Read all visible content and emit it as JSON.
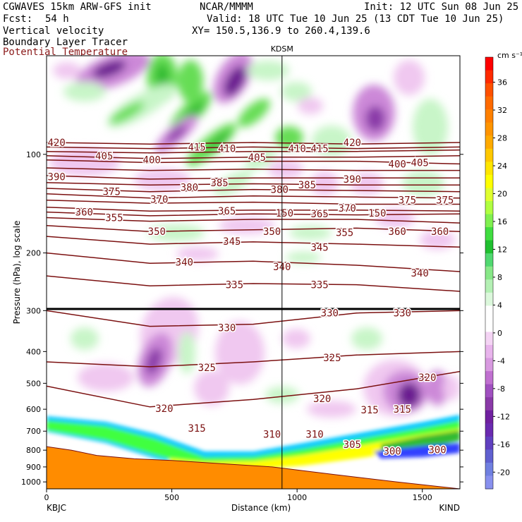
{
  "header": {
    "model": "CGWAVES 15km ARW-GFS init",
    "org": "NCAR/MMMM",
    "init": "Init: 12 UTC Sun 08 Jun 25",
    "fcst_label": "Fcst:",
    "fcst_value": "54 h",
    "valid": "Valid: 18 UTC Tue 10 Jun 25 (13 CDT Tue 10 Jun 25)",
    "field1": "Vertical velocity",
    "xy": "XY= 150.5,136.9 to 260.4,139.6",
    "field2": "Boundary Layer Tracer",
    "field3": "Potential Temperature"
  },
  "colors": {
    "theta": "#7b1010",
    "field3_text": "#8b1a1a",
    "terrain": "#ff8c00",
    "pos_light": "#c8f5c8",
    "pos_mid": "#66dd55",
    "pos_strong": "#33bb33",
    "neg_light": "#f0c8f0",
    "neg_mid": "#cc88d8",
    "neg_strong": "#8a3aa8",
    "neg_deep": "#6a1a90"
  },
  "chart_data": {
    "type": "heatmap",
    "xlabel": "Distance (km)",
    "ylabel": "Pressure (hPa), log scale",
    "x_ticks": [
      0,
      500,
      1000,
      1500
    ],
    "y_ticks": [
      100,
      200,
      300,
      400,
      500,
      600,
      700,
      800,
      900,
      1000
    ],
    "xlim": [
      0,
      1650
    ],
    "ylim": [
      1050,
      50
    ],
    "y_scale": "log",
    "start_label": "KBJC",
    "end_label": "KIND",
    "station_marker": {
      "label": "KDSM",
      "x": 940
    },
    "colorbar": {
      "unit": "cm s⁻¹",
      "labels": [
        "36",
        "32",
        "28",
        "24",
        "20",
        "16",
        "12",
        "8",
        "4",
        "0",
        "-4",
        "-8",
        "-12",
        "-16",
        "-20"
      ],
      "colors": [
        "#ff0000",
        "#ff2a00",
        "#ff5000",
        "#ff6a00",
        "#ff8000",
        "#ff9400",
        "#ffaa00",
        "#ffc800",
        "#ffe600",
        "#ffff00",
        "#e0ff30",
        "#b0ff40",
        "#80f050",
        "#40dd40",
        "#20c030",
        "#50d870",
        "#88e888",
        "#b4f0b4",
        "#dcf8dc",
        "#ffffff",
        "#ffffff",
        "#f4d4f4",
        "#e8b4ec",
        "#d89ae0",
        "#c070d0",
        "#a050c0",
        "#8a3aa8",
        "#7020a0",
        "#6a2ab0",
        "#6040c0",
        "#6060d0",
        "#7080e0",
        "#8890ee"
      ]
    },
    "theta_labels": [
      {
        "text": "420",
        "x": 40,
        "p": 92
      },
      {
        "text": "415",
        "x": 600,
        "p": 95
      },
      {
        "text": "410",
        "x": 720,
        "p": 96
      },
      {
        "text": "410",
        "x": 1000,
        "p": 96
      },
      {
        "text": "415",
        "x": 1090,
        "p": 96
      },
      {
        "text": "420",
        "x": 1220,
        "p": 92
      },
      {
        "text": "405",
        "x": 230,
        "p": 101
      },
      {
        "text": "400",
        "x": 420,
        "p": 104
      },
      {
        "text": "405",
        "x": 840,
        "p": 102
      },
      {
        "text": "400",
        "x": 1400,
        "p": 107
      },
      {
        "text": "405",
        "x": 1490,
        "p": 106
      },
      {
        "text": "390",
        "x": 40,
        "p": 117
      },
      {
        "text": "380",
        "x": 570,
        "p": 126
      },
      {
        "text": "385",
        "x": 690,
        "p": 122
      },
      {
        "text": "380",
        "x": 930,
        "p": 128
      },
      {
        "text": "385",
        "x": 1040,
        "p": 124
      },
      {
        "text": "390",
        "x": 1220,
        "p": 119
      },
      {
        "text": "375",
        "x": 260,
        "p": 130
      },
      {
        "text": "370",
        "x": 450,
        "p": 137
      },
      {
        "text": "375",
        "x": 1440,
        "p": 138
      },
      {
        "text": "375",
        "x": 1590,
        "p": 138
      },
      {
        "text": "360",
        "x": 150,
        "p": 150
      },
      {
        "text": "355",
        "x": 270,
        "p": 156
      },
      {
        "text": "365",
        "x": 720,
        "p": 149
      },
      {
        "text": "365",
        "x": 1090,
        "p": 152
      },
      {
        "text": "370",
        "x": 1200,
        "p": 146
      },
      {
        "text": "150",
        "x": 950,
        "p": 151
      },
      {
        "text": "150",
        "x": 1320,
        "p": 151
      },
      {
        "text": "350",
        "x": 440,
        "p": 172
      },
      {
        "text": "350",
        "x": 900,
        "p": 172
      },
      {
        "text": "355",
        "x": 1190,
        "p": 173
      },
      {
        "text": "360",
        "x": 1400,
        "p": 172
      },
      {
        "text": "360",
        "x": 1570,
        "p": 172
      },
      {
        "text": "345",
        "x": 740,
        "p": 184
      },
      {
        "text": "345",
        "x": 1090,
        "p": 192
      },
      {
        "text": "340",
        "x": 550,
        "p": 213
      },
      {
        "text": "340",
        "x": 940,
        "p": 220
      },
      {
        "text": "340",
        "x": 1490,
        "p": 230
      },
      {
        "text": "335",
        "x": 750,
        "p": 250
      },
      {
        "text": "335",
        "x": 1090,
        "p": 250
      },
      {
        "text": "330",
        "x": 720,
        "p": 338
      },
      {
        "text": "330",
        "x": 1130,
        "p": 305
      },
      {
        "text": "330",
        "x": 1420,
        "p": 305
      },
      {
        "text": "325",
        "x": 640,
        "p": 447
      },
      {
        "text": "325",
        "x": 1140,
        "p": 418
      },
      {
        "text": "320",
        "x": 470,
        "p": 597
      },
      {
        "text": "320",
        "x": 1100,
        "p": 556
      },
      {
        "text": "320",
        "x": 1520,
        "p": 480
      },
      {
        "text": "315",
        "x": 600,
        "p": 686
      },
      {
        "text": "315",
        "x": 1290,
        "p": 602
      },
      {
        "text": "315",
        "x": 1420,
        "p": 600
      },
      {
        "text": "310",
        "x": 900,
        "p": 715
      },
      {
        "text": "310",
        "x": 1070,
        "p": 715
      },
      {
        "text": "305",
        "x": 1220,
        "p": 768
      },
      {
        "text": "300",
        "x": 1380,
        "p": 805
      },
      {
        "text": "300",
        "x": 1560,
        "p": 797
      }
    ],
    "theta_lines": [
      {
        "theta": 420,
        "p": [
          92,
          93,
          92,
          93,
          92
        ]
      },
      {
        "theta": 415,
        "p": [
          95,
          96,
          95,
          96,
          95
        ]
      },
      {
        "theta": 410,
        "p": [
          98,
          99,
          98,
          98,
          97
        ]
      },
      {
        "theta": 405,
        "p": [
          101,
          103,
          102,
          102,
          101
        ]
      },
      {
        "theta": 400,
        "p": [
          104,
          106,
          105,
          105,
          107
        ]
      },
      {
        "theta": 395,
        "p": [
          110,
          112,
          111,
          112,
          112
        ]
      },
      {
        "theta": 390,
        "p": [
          116,
          119,
          118,
          118,
          118
        ]
      },
      {
        "theta": 385,
        "p": [
          122,
          124,
          123,
          124,
          124
        ]
      },
      {
        "theta": 380,
        "p": [
          127,
          130,
          128,
          129,
          130
        ]
      },
      {
        "theta": 375,
        "p": [
          132,
          136,
          134,
          135,
          136
        ]
      },
      {
        "theta": 370,
        "p": [
          138,
          141,
          140,
          142,
          142
        ]
      },
      {
        "theta": 365,
        "p": [
          145,
          149,
          148,
          148,
          149
        ]
      },
      {
        "theta": 360,
        "p": [
          150,
          154,
          152,
          153,
          152
        ]
      },
      {
        "theta": 355,
        "p": [
          156,
          160,
          158,
          158,
          162
        ]
      },
      {
        "theta": 350,
        "p": [
          165,
          172,
          170,
          168,
          172
        ]
      },
      {
        "theta": 345,
        "p": [
          178,
          188,
          185,
          188,
          192
        ]
      },
      {
        "theta": 340,
        "p": [
          200,
          215,
          212,
          218,
          228
        ]
      },
      {
        "theta": 335,
        "p": [
          235,
          252,
          248,
          250,
          262
        ]
      },
      {
        "theta": 330,
        "p": [
          300,
          335,
          330,
          305,
          300
        ]
      },
      {
        "theta": 325,
        "p": [
          430,
          445,
          430,
          410,
          400
        ]
      },
      {
        "theta": 320,
        "p": [
          510,
          590,
          560,
          520,
          460
        ]
      }
    ],
    "terrain_p": [
      780,
      800,
      830,
      850,
      860,
      880,
      900,
      950,
      1000,
      1050
    ],
    "terrain_x": [
      0,
      100,
      200,
      350,
      500,
      700,
      900,
      1150,
      1400,
      1650
    ]
  }
}
